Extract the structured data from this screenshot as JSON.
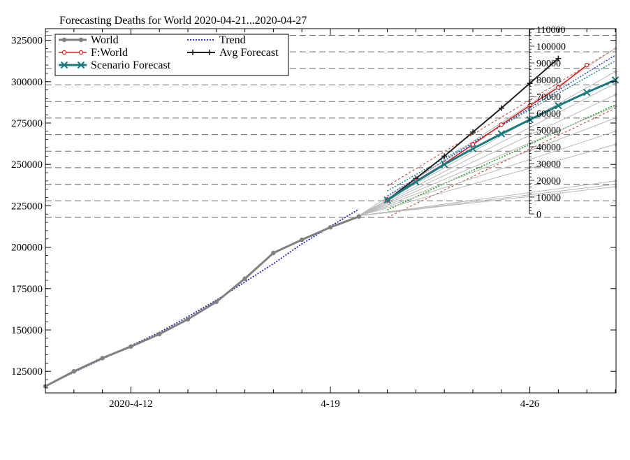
{
  "chart_data": {
    "type": "line",
    "title": "Forecasting Deaths for World 2020-04-21...2020-04-27",
    "xlabel": "",
    "ylabel": "",
    "x_ticks": [
      {
        "label": "2020-4-12",
        "day": 3
      },
      {
        "label": "4-19",
        "day": 10
      },
      {
        "label": "4-26",
        "day": 17
      }
    ],
    "xlim_days": [
      0,
      20.1
    ],
    "x_day0": "2020-04-09",
    "ylim": [
      112000,
      332000
    ],
    "y_ticks": [
      125000,
      150000,
      175000,
      200000,
      225000,
      250000,
      275000,
      300000,
      325000
    ],
    "y_tick_labels": [
      "125000",
      "150000",
      "175000",
      "200000",
      "225000",
      "250000",
      "275000",
      "300000",
      "325000"
    ],
    "grid": "dashed horizontal lines (upper part)",
    "legend_position": "top-left",
    "legend": [
      "World",
      "Trend",
      "F:World",
      "Avg Forecast",
      "Scenario Forecast"
    ],
    "inset_axis": {
      "ticks": [
        "110000",
        "100000",
        "90000",
        "80000",
        "70000",
        "60000",
        "50000",
        "40000",
        "30000",
        "20000",
        "10000",
        "0"
      ],
      "values": [
        110000,
        100000,
        90000,
        80000,
        70000,
        60000,
        50000,
        40000,
        30000,
        20000,
        10000,
        0
      ]
    },
    "series": [
      {
        "name": "World",
        "color": "#808080",
        "x_day": [
          0,
          1,
          2,
          3,
          4,
          5,
          6,
          7,
          8,
          9,
          10,
          11
        ],
        "values": [
          116000,
          125000,
          133000,
          140000,
          147500,
          156500,
          167000,
          181000,
          196500,
          204500,
          212000,
          218500
        ]
      },
      {
        "name": "Trend",
        "color": "#2222bb",
        "x_day": [
          0,
          1,
          2,
          3,
          4,
          5,
          6,
          7,
          8,
          9,
          10,
          11
        ],
        "values": [
          116000,
          124500,
          132500,
          140500,
          148500,
          158000,
          168000,
          179000,
          190000,
          202000,
          212500,
          223000
        ]
      },
      {
        "name": "F:World",
        "color": "#e02020",
        "x_day": [
          12,
          13,
          14,
          15,
          16,
          17,
          18,
          19
        ],
        "values": [
          228500,
          240000,
          250500,
          262000,
          274000,
          285500,
          296500,
          310000
        ]
      },
      {
        "name": "Avg Forecast",
        "color": "#222222",
        "x_day": [
          12,
          13,
          14,
          15,
          16,
          17,
          18
        ],
        "values": [
          228500,
          241500,
          255000,
          269500,
          284000,
          299000,
          314000
        ]
      },
      {
        "name": "Scenario Forecast",
        "color": "#1a7a80",
        "x_day": [
          12,
          13,
          14,
          15,
          16,
          17,
          18,
          19,
          20
        ],
        "values": [
          228500,
          239500,
          250000,
          259500,
          268500,
          277000,
          285500,
          293500,
          301000
        ]
      }
    ],
    "auxiliary_lines": [
      {
        "style": "red-dotted",
        "x_day": [
          12,
          20
        ],
        "values": [
          237000,
          320000
        ]
      },
      {
        "style": "red-dotted",
        "x_day": [
          12,
          20
        ],
        "values": [
          218000,
          284000
        ]
      },
      {
        "style": "teal-dotted",
        "x_day": [
          12,
          20
        ],
        "values": [
          234000,
          312500
        ]
      },
      {
        "style": "blue-dotted",
        "x_day": [
          12,
          20
        ],
        "values": [
          231000,
          316000
        ]
      },
      {
        "style": "green-dotted",
        "x_day": [
          12,
          20
        ],
        "values": [
          222500,
          286000
        ]
      },
      {
        "style": "gray",
        "x_day": [
          11,
          20
        ],
        "values": [
          219000,
          320000
        ]
      },
      {
        "style": "gray",
        "x_day": [
          11,
          20
        ],
        "values": [
          219000,
          306000
        ]
      },
      {
        "style": "gray",
        "x_day": [
          11,
          20
        ],
        "values": [
          219000,
          299000
        ]
      },
      {
        "style": "gray",
        "x_day": [
          11,
          20
        ],
        "values": [
          219000,
          292000
        ]
      },
      {
        "style": "gray",
        "x_day": [
          11,
          20
        ],
        "values": [
          219000,
          285000
        ]
      },
      {
        "style": "gray",
        "x_day": [
          11,
          20
        ],
        "values": [
          219000,
          278000
        ]
      },
      {
        "style": "gray",
        "x_day": [
          11,
          20
        ],
        "values": [
          219000,
          270000
        ]
      },
      {
        "style": "gray",
        "x_day": [
          11,
          20
        ],
        "values": [
          219000,
          262000
        ]
      },
      {
        "style": "gray",
        "x_day": [
          11,
          20
        ],
        "values": [
          219000,
          240000
        ]
      },
      {
        "style": "gray",
        "x_day": [
          11,
          20
        ],
        "values": [
          219000,
          238000
        ]
      },
      {
        "style": "gray",
        "x_day": [
          11,
          20
        ],
        "values": [
          219000,
          236500
        ]
      }
    ]
  }
}
